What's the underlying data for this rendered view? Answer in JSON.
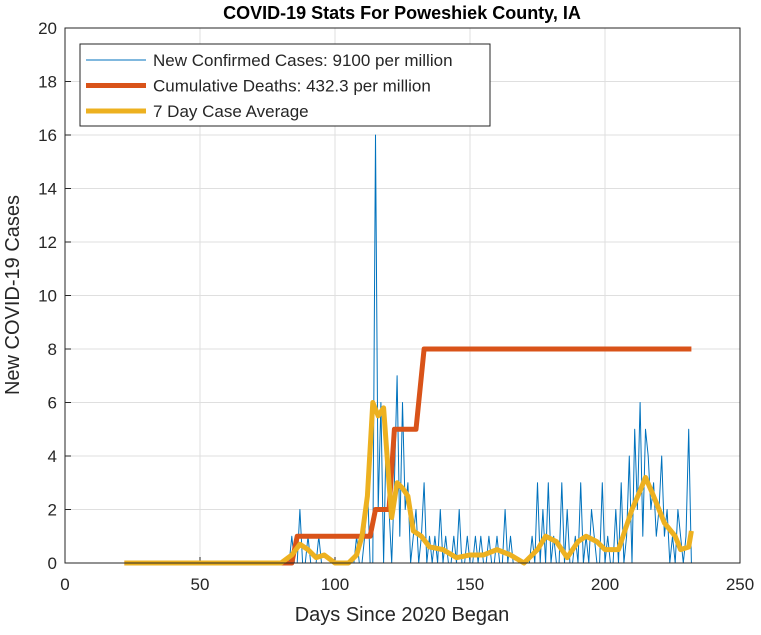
{
  "chart_data": {
    "type": "line",
    "title": "COVID-19 Stats For Poweshiek County, IA",
    "xlabel": "Days Since 2020 Began",
    "ylabel": "New COVID-19 Cases",
    "xlim": [
      0,
      250
    ],
    "xticks": [
      0,
      50,
      100,
      150,
      200,
      250
    ],
    "ylim": [
      0,
      20
    ],
    "yticks": [
      0,
      2,
      4,
      6,
      8,
      10,
      12,
      14,
      16,
      18,
      20
    ],
    "grid": true,
    "legend": "top-left",
    "series": [
      {
        "name": "New Confirmed Cases: 9100 per million",
        "color": "#0072bd",
        "width": 1,
        "x": [
          82,
          83,
          84,
          85,
          86,
          87,
          88,
          89,
          90,
          91,
          92,
          93,
          94,
          95,
          96,
          97,
          98,
          99,
          100,
          101,
          102,
          103,
          104,
          105,
          106,
          107,
          108,
          109,
          110,
          111,
          112,
          113,
          114,
          115,
          116,
          117,
          118,
          119,
          120,
          121,
          122,
          123,
          124,
          125,
          126,
          127,
          128,
          129,
          130,
          131,
          132,
          133,
          134,
          135,
          136,
          137,
          138,
          139,
          140,
          141,
          142,
          143,
          144,
          145,
          146,
          147,
          148,
          149,
          150,
          151,
          152,
          153,
          154,
          155,
          156,
          157,
          158,
          159,
          160,
          161,
          162,
          163,
          164,
          165,
          166,
          167,
          168,
          169,
          170,
          171,
          172,
          173,
          174,
          175,
          176,
          177,
          178,
          179,
          180,
          181,
          182,
          183,
          184,
          185,
          186,
          187,
          188,
          189,
          190,
          191,
          192,
          193,
          194,
          195,
          196,
          197,
          198,
          199,
          200,
          201,
          202,
          203,
          204,
          205,
          206,
          207,
          208,
          209,
          210,
          211,
          212,
          213,
          214,
          215,
          216,
          217,
          218,
          219,
          220,
          221,
          222,
          223,
          224,
          225,
          226,
          227,
          228,
          229,
          230,
          231,
          232
        ],
        "values": [
          0,
          0,
          1,
          0,
          0,
          2,
          0,
          0,
          1,
          0,
          0,
          0,
          1,
          0,
          0,
          0,
          0,
          0,
          0,
          0,
          0,
          0,
          0,
          0,
          0,
          0,
          1,
          0,
          0,
          1,
          3,
          0,
          0,
          16,
          2,
          6,
          0,
          5,
          2,
          0,
          3,
          7,
          1,
          6,
          2,
          3,
          0,
          1,
          2,
          0,
          1,
          3,
          0,
          1,
          0,
          1,
          0,
          2,
          0,
          1,
          0,
          0,
          1,
          0,
          2,
          0,
          0,
          1,
          0,
          0,
          1,
          0,
          1,
          0,
          0,
          1,
          0,
          0,
          1,
          0,
          0,
          2,
          0,
          1,
          0,
          0,
          0,
          0,
          0,
          0,
          0,
          1,
          0,
          3,
          0,
          2,
          0,
          3,
          0,
          1,
          0,
          0,
          3,
          0,
          2,
          0,
          0,
          1,
          0,
          3,
          0,
          1,
          0,
          2,
          1,
          0,
          0,
          3,
          0,
          1,
          0,
          0,
          2,
          0,
          3,
          0,
          1,
          4,
          0,
          5,
          2,
          6,
          1,
          5,
          4,
          2,
          3,
          1,
          2,
          4,
          1,
          2,
          0,
          1,
          0,
          2,
          1,
          0,
          1,
          5,
          0
        ]
      },
      {
        "name": "Cumulative Deaths: 432.3 per million",
        "color": "#d95319",
        "width": 5,
        "x": [
          22,
          84,
          86,
          113,
          115,
          120,
          122,
          130,
          133,
          232
        ],
        "values": [
          0,
          0,
          1,
          1,
          2,
          2,
          5,
          5,
          8,
          8
        ]
      },
      {
        "name": "7 Day Case Average",
        "color": "#edb120",
        "width": 5,
        "x": [
          22,
          80,
          84,
          87,
          90,
          93,
          96,
          100,
          105,
          108,
          110,
          112,
          114,
          116,
          118,
          120,
          121,
          123,
          125,
          127,
          129,
          132,
          135,
          140,
          145,
          150,
          155,
          160,
          165,
          170,
          175,
          178,
          182,
          186,
          190,
          193,
          197,
          200,
          205,
          210,
          213,
          215,
          218,
          222,
          226,
          228,
          231,
          232
        ],
        "values": [
          0,
          0,
          0.3,
          0.7,
          0.5,
          0.2,
          0.3,
          0,
          0,
          0.3,
          1,
          2.5,
          6,
          5.5,
          5.8,
          3,
          1.7,
          3,
          2.8,
          2.5,
          1.2,
          1,
          0.6,
          0.5,
          0.2,
          0.3,
          0.3,
          0.5,
          0.3,
          0,
          0.5,
          1,
          0.8,
          0.2,
          0.8,
          1,
          0.8,
          0.5,
          0.5,
          2,
          2.7,
          3.2,
          2.5,
          1.5,
          1,
          0.5,
          0.6,
          1.2
        ]
      }
    ]
  }
}
